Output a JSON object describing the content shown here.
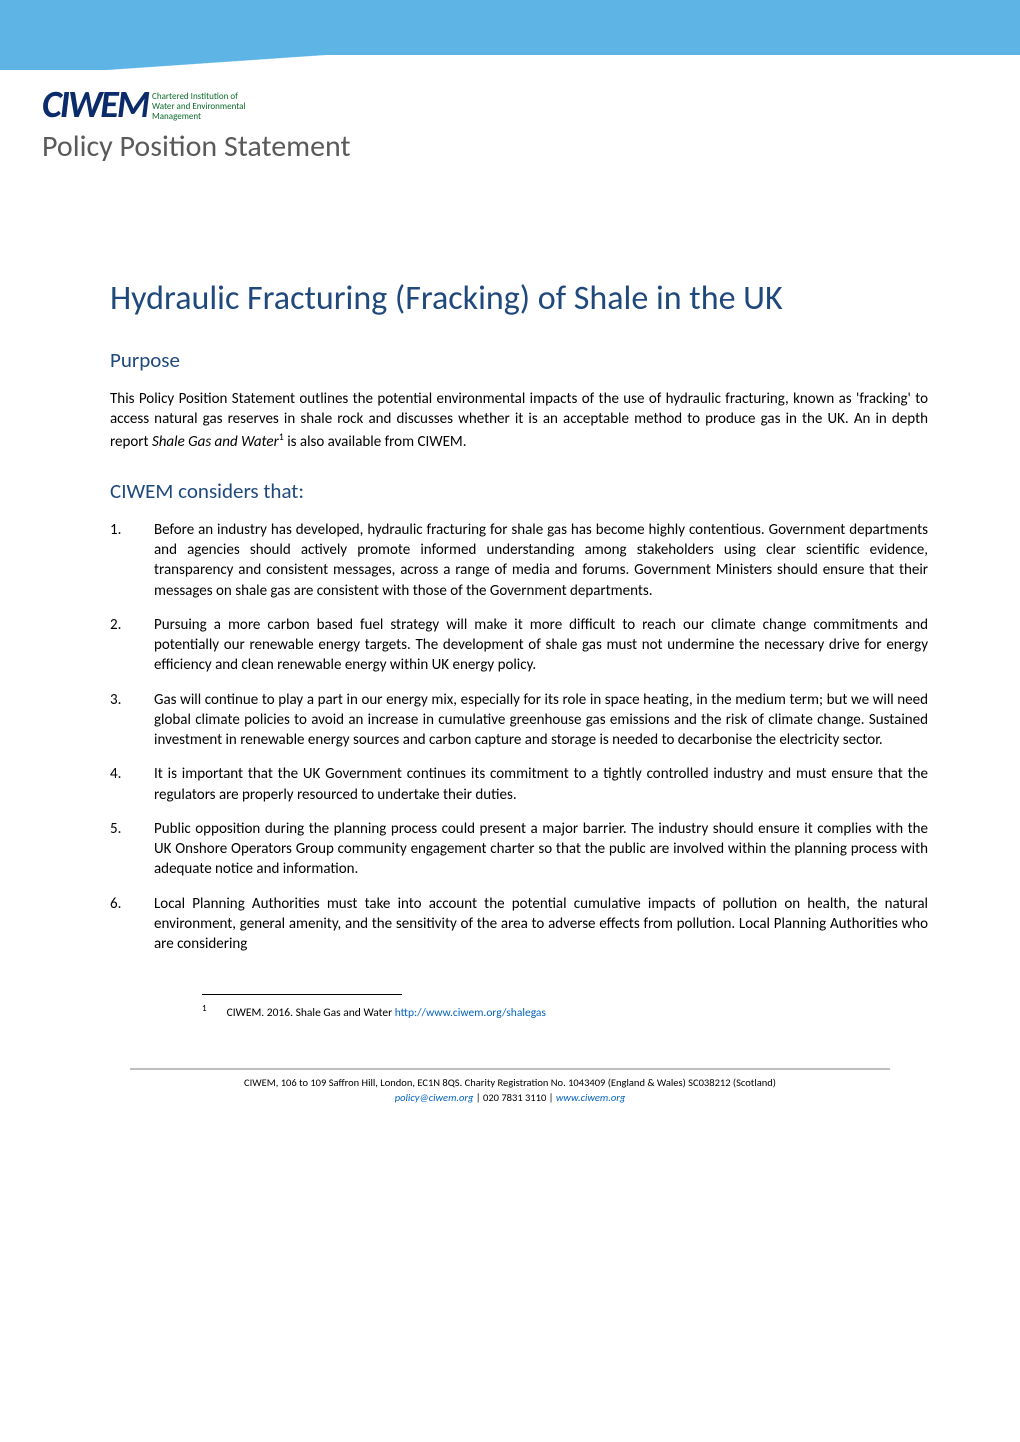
{
  "colors": {
    "banner": "#5db4e5",
    "heading_blue": "#1f497d",
    "logo_navy": "#0b2b6b",
    "logo_green": "#0b6b2b",
    "link_blue": "#0563c1",
    "body_text": "#000000",
    "subtitle_grey": "#5a5a5a",
    "divider_grey": "#bfbfbf",
    "background": "#ffffff"
  },
  "typography": {
    "main_title_size": 34,
    "section_heading_size": 21,
    "body_size": 15,
    "subtitle_size": 30,
    "footnote_size": 11.5,
    "footer_size": 10.5
  },
  "logo": {
    "mark": "CIWEM",
    "tagline_line1": "Chartered Institution of",
    "tagline_line2": "Water and Environmental",
    "tagline_line3": "Management"
  },
  "subtitle": "Policy Position Statement",
  "title": "Hydraulic Fracturing (Fracking) of Shale in the UK",
  "sections": {
    "purpose": {
      "heading": "Purpose",
      "text_pre": "This Policy Position Statement outlines the potential environmental impacts of the use of hydraulic fracturing, known as 'fracking' to access natural gas reserves in shale rock and discusses whether it is an acceptable method to produce gas in the UK.  An in depth report ",
      "text_italic": "Shale Gas and Water",
      "footnote_ref": "1",
      "text_post": " is also available from CIWEM."
    },
    "considers": {
      "heading": "CIWEM considers that:",
      "items": [
        "Before an industry has developed, hydraulic fracturing for shale gas has become highly contentious.  Government departments and agencies should actively promote informed understanding among stakeholders using clear scientific evidence, transparency and consistent messages, across a range of media and forums.  Government Ministers should ensure that their messages on shale gas are consistent with those of the Government departments.",
        "Pursuing a more carbon based fuel strategy will make it more difficult to reach our climate change commitments and potentially our renewable energy targets.  The development of shale gas must not undermine the necessary drive for energy efficiency and clean renewable energy within UK energy policy.",
        "Gas will continue to play a part in our energy mix, especially for its role in space heating, in the medium term; but we will need global climate policies to avoid an increase in cumulative greenhouse gas emissions and the risk of climate change.  Sustained investment in renewable energy sources and carbon capture and storage is needed to decarbonise the electricity sector.",
        "It is important that the UK Government continues its commitment to a tightly controlled industry and must ensure that the regulators are properly resourced to undertake their duties.",
        "Public opposition during the planning process could present a major barrier.  The industry should ensure it complies with the UK Onshore Operators Group community engagement charter so that the public are involved within the planning process with adequate notice and information.",
        "Local Planning Authorities must take into account the potential cumulative impacts of pollution on health, the natural environment, general amenity, and the sensitivity of the area to adverse effects from pollution.  Local Planning Authorities who are considering"
      ]
    }
  },
  "footnote": {
    "ref": "1",
    "text": "CIWEM. 2016. Shale Gas and Water ",
    "link": "http://www.ciwem.org/shalegas"
  },
  "footer": {
    "line1": "CIWEM, 106 to 109 Saffron Hill, London, EC1N 8QS. Charity Registration No. 1043409 (England & Wales) SC038212 (Scotland)",
    "email": "policy@ciwem.org",
    "sep1": " | ",
    "phone": "020 7831 3110",
    "sep2": " | ",
    "website": "www.ciwem.org"
  }
}
